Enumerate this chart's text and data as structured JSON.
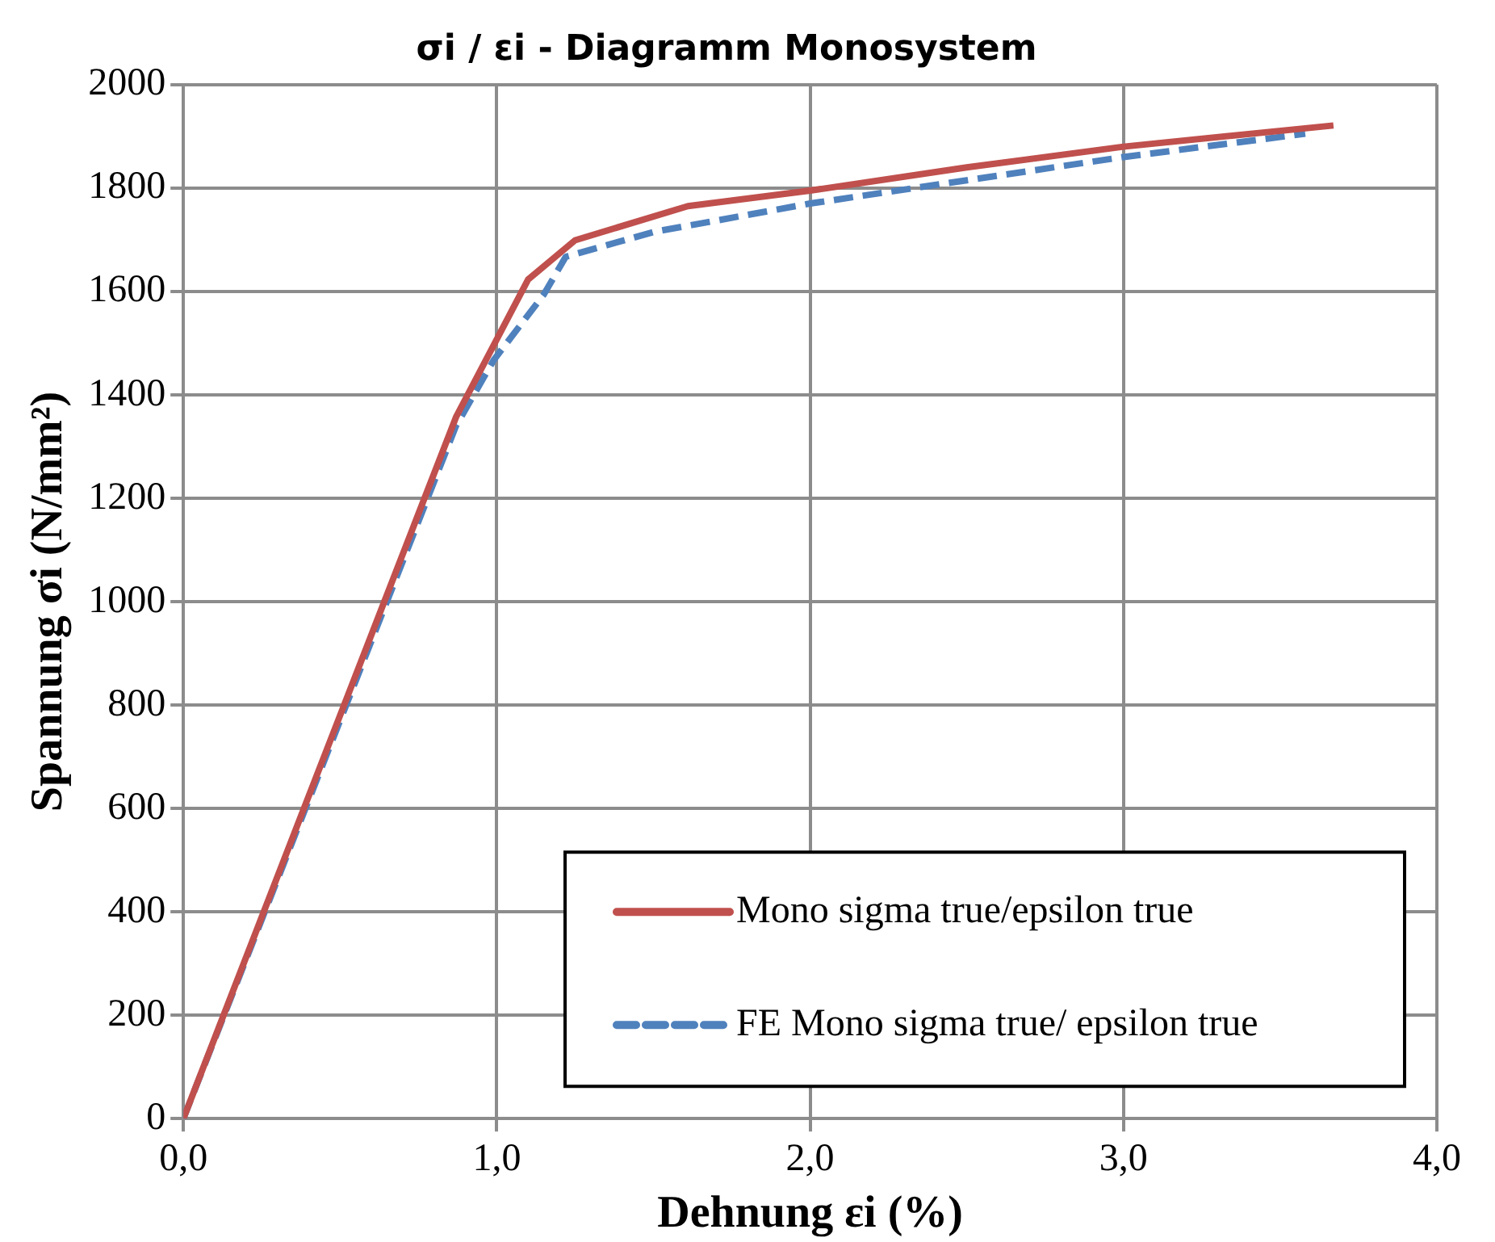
{
  "chart_data": {
    "type": "line",
    "title": "σi / εi - Diagramm Monosystem",
    "xlabel": "Dehnung εi (%)",
    "ylabel": "Spannung σi (N/mm²)",
    "xlim": [
      0,
      4
    ],
    "xticks": [
      {
        "value": 0,
        "label": "0,0"
      },
      {
        "value": 1,
        "label": "1,0"
      },
      {
        "value": 2,
        "label": "2,0"
      },
      {
        "value": 3,
        "label": "3,0"
      },
      {
        "value": 4,
        "label": "4,0"
      }
    ],
    "ylim": [
      0,
      2000
    ],
    "yticks": [
      0,
      200,
      400,
      600,
      800,
      1000,
      1200,
      1400,
      1600,
      1800,
      2000
    ],
    "grid": true,
    "legend": "bottom right",
    "marker": "none",
    "series": [
      {
        "name": "Mono sigma true/epsilon true",
        "color": "#c0504d",
        "line_style": "solid",
        "x": [
          0,
          0.5,
          0.87,
          1.1,
          1.25,
          1.61,
          2.0,
          2.5,
          3.0,
          3.67
        ],
        "values": [
          0,
          780,
          1357,
          1623,
          1699,
          1765,
          1795,
          1840,
          1880,
          1921
        ]
      },
      {
        "name": "FE Mono sigma true/ epsilon true",
        "color": "#4f81bd",
        "line_style": "dashed",
        "x": [
          0,
          0.5,
          0.87,
          0.99,
          1.15,
          1.22,
          1.5,
          2.0,
          2.5,
          3.0,
          3.58
        ],
        "values": [
          0,
          770,
          1340,
          1467,
          1594,
          1667,
          1715,
          1770,
          1815,
          1860,
          1905
        ]
      }
    ]
  }
}
